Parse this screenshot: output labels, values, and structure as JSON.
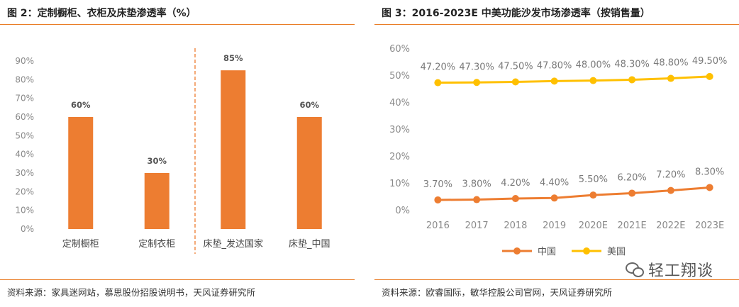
{
  "left": {
    "title": "图 2：定制橱柜、衣柜及床垫渗透率（%）",
    "source": "资料来源：家具迷网站，慕思股份招股说明书，天风证券研究所"
  },
  "right": {
    "title": "图 3：2016-2023E 中美功能沙发市场渗透率（按销售量）",
    "source": "资料来源：欧睿国际，敏华控股公司官网，天风证券研究所",
    "watermark": "轻工翔谈"
  },
  "chart_data": [
    {
      "type": "bar",
      "categories": [
        "定制橱柜",
        "定制衣柜",
        "床垫_发达国家",
        "床垫_中国"
      ],
      "values": [
        60,
        30,
        85,
        60
      ],
      "value_labels": [
        "60%",
        "30%",
        "85%",
        "60%"
      ],
      "yticks": [
        "0%",
        "10%",
        "20%",
        "30%",
        "40%",
        "50%",
        "60%",
        "70%",
        "80%",
        "90%"
      ],
      "ylim": [
        0,
        90
      ],
      "color": "#ed7d31",
      "divider_after_index": 1,
      "divider_color": "#ed7d31",
      "grid": false
    },
    {
      "type": "line",
      "categories": [
        "2016",
        "2017",
        "2018",
        "2019",
        "2020E",
        "2021E",
        "2022E",
        "2023E"
      ],
      "series": [
        {
          "name": "中国",
          "values": [
            3.7,
            3.8,
            4.2,
            4.4,
            5.5,
            6.2,
            7.2,
            8.3
          ],
          "labels": [
            "3.70%",
            "3.80%",
            "4.20%",
            "4.40%",
            "5.50%",
            "6.20%",
            "7.20%",
            "8.30%"
          ],
          "color": "#ed7d31"
        },
        {
          "name": "美国",
          "values": [
            47.2,
            47.3,
            47.5,
            47.8,
            48.0,
            48.3,
            48.8,
            49.5
          ],
          "labels": [
            "47.20%",
            "47.30%",
            "47.50%",
            "47.80%",
            "48.00%",
            "48.30%",
            "48.80%",
            "49.50%"
          ],
          "color": "#ffc000"
        }
      ],
      "yticks": [
        "0%",
        "10%",
        "20%",
        "30%",
        "40%",
        "50%",
        "60%"
      ],
      "ylim": [
        0,
        60
      ],
      "legend": "bottom-center",
      "grid": false
    }
  ]
}
